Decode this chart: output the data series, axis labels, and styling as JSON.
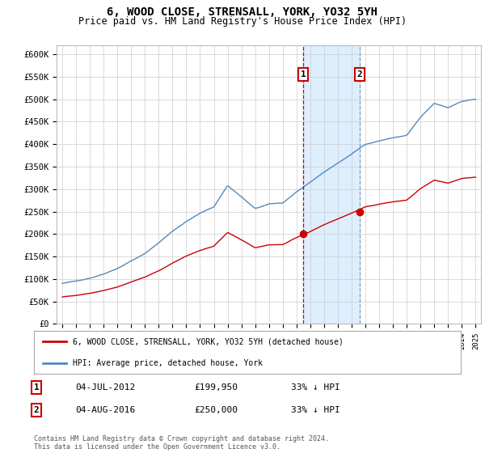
{
  "title": "6, WOOD CLOSE, STRENSALL, YORK, YO32 5YH",
  "subtitle": "Price paid vs. HM Land Registry's House Price Index (HPI)",
  "hpi_label": "HPI: Average price, detached house, York",
  "property_label": "6, WOOD CLOSE, STRENSALL, YORK, YO32 5YH (detached house)",
  "footnote": "Contains HM Land Registry data © Crown copyright and database right 2024.\nThis data is licensed under the Open Government Licence v3.0.",
  "transaction1": {
    "label": "1",
    "date": "04-JUL-2012",
    "price": "£199,950",
    "hpi_diff": "33% ↓ HPI"
  },
  "transaction2": {
    "label": "2",
    "date": "04-AUG-2016",
    "price": "£250,000",
    "hpi_diff": "33% ↓ HPI"
  },
  "t1_year": 2012.5,
  "t2_year": 2016.58,
  "t1_price": 199950,
  "t2_price": 250000,
  "hpi_color": "#5588bb",
  "property_color": "#cc0000",
  "shade_color": "#ddeeff",
  "ylim_min": 0,
  "ylim_max": 620000,
  "yticks": [
    0,
    50000,
    100000,
    150000,
    200000,
    250000,
    300000,
    350000,
    400000,
    450000,
    500000,
    550000,
    600000
  ],
  "ytick_labels": [
    "£0",
    "£50K",
    "£100K",
    "£150K",
    "£200K",
    "£250K",
    "£300K",
    "£350K",
    "£400K",
    "£450K",
    "£500K",
    "£550K",
    "£600K"
  ]
}
